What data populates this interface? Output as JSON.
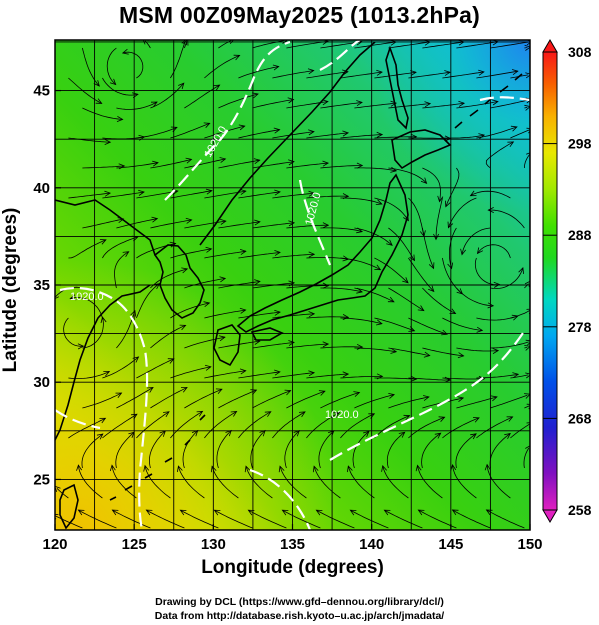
{
  "title": "MSM 00Z09May2025 (1013.2hPa)",
  "xaxis": {
    "label": "Longitude (degrees)",
    "ticks": [
      120,
      125,
      130,
      135,
      140,
      145,
      150
    ],
    "range": [
      120,
      150
    ]
  },
  "yaxis": {
    "label": "Latitude  (degrees)",
    "ticks": [
      25,
      30,
      35,
      40,
      45
    ],
    "range": [
      22.4,
      47.6
    ]
  },
  "colorbar": {
    "ticks": [
      258,
      268,
      278,
      288,
      298,
      308
    ],
    "range": [
      258,
      308
    ],
    "colors": [
      "#e020c0",
      "#8010c0",
      "#2020d0",
      "#0050e8",
      "#00a8f0",
      "#00d8c0",
      "#20d820",
      "#40e000",
      "#a0e800",
      "#e8e800",
      "#f8b000",
      "#f86000",
      "#f81818"
    ]
  },
  "isobars": [
    {
      "label": "1020.0"
    },
    {
      "label": "1020.0"
    },
    {
      "label": "1020.0"
    },
    {
      "label": "1020.0"
    }
  ],
  "credits": [
    "Drawing by DCL (https://www.gfd–dennou.org/library/dcl/)",
    "Data from http://database.rish.kyoto–u.ac.jp/arch/jmadata/"
  ],
  "map": {
    "land_color": "#000000",
    "grid_color": "#000000",
    "streamline_color": "#000000",
    "isobar_color": "#ffffff"
  }
}
